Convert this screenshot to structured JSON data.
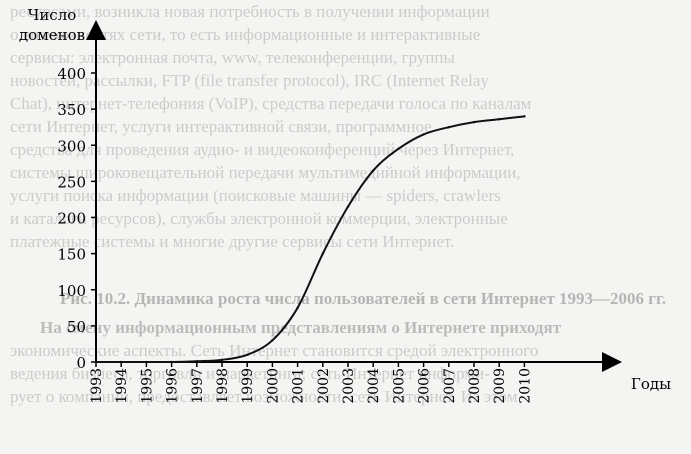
{
  "chart_data": {
    "type": "line",
    "ylabel_line1": "Число",
    "ylabel_line2": "доменов",
    "xlabel": "Годы",
    "ylim": [
      0,
      400
    ],
    "y_ticks": [
      "0",
      "50",
      "100",
      "150",
      "200",
      "250",
      "300",
      "350",
      "400"
    ],
    "x_ticks": [
      "1993",
      "1994",
      "1995",
      "1996",
      "1997",
      "1998",
      "1999",
      "2000",
      "2001",
      "2002",
      "2003",
      "2004",
      "2005",
      "2006",
      "2007",
      "2008",
      "2009",
      "2010"
    ],
    "series": [
      {
        "x": [
          1993,
          1994,
          1995,
          1996,
          1997,
          1998,
          1999,
          2000,
          2001,
          2002,
          2003,
          2004,
          2005,
          2006,
          2007,
          2008,
          2009,
          2010
        ],
        "y": [
          0,
          0,
          0,
          0,
          1,
          3,
          10,
          30,
          75,
          150,
          215,
          265,
          295,
          315,
          325,
          332,
          336,
          340
        ],
        "color": "#111111"
      }
    ],
    "grid": false
  },
  "background_text": {
    "lines": [
      "ресурсами, возникла новая потребность в получении информации",
      "о возможностях сети, то есть информационные и интерактивные",
      "сервисы: электронная почта, www, телеконференции, группы",
      "новостей, рассылки, FTP (file transfer protocol), IRC (Internet Relay",
      "Chat), интернет-телефония (VoIP), средства передачи голоса по каналам",
      "сети Интернет, услуги интерактивной связи, программное",
      "средства для проведения аудио- и видеоконференций через Интернет,",
      "системы широковещательной передачи мультимедийной информации,",
      "услуги поиска информации (поисковые машины — spiders, crawlers",
      "и каталоги ресурсов), службы электронной коммерции, электронные",
      "платежные системы и многие другие сервисы сети Интернет."
    ],
    "caption": "Рис. 10.2. Динамика роста числа пользователей в сети Интернет 1993—2006 гг.",
    "para_lines": [
      "На смену информационным представлениям о Интернете приходят",
      "экономические аспекты. Сеть Интернет становится средой электронного",
      "ведения бизнеса, торговли и маркетинга; сеть Интернет информи-",
      "рует о компании, предоставляет возможности, сеть Интернет. Из этом"
    ]
  }
}
